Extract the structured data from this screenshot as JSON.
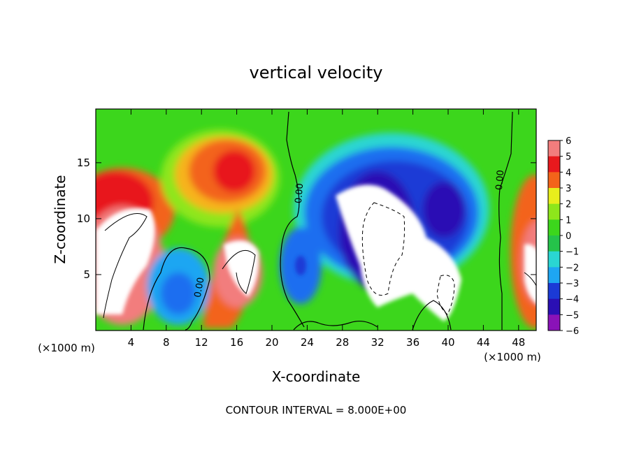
{
  "chart_data": {
    "type": "heatmap",
    "title": "vertical velocity",
    "xlabel": "X-coordinate",
    "ylabel": "Z-coordinate",
    "x_unit_left": "(×1000 m)",
    "x_unit_right": "(×1000 m)",
    "footer": "CONTOUR INTERVAL = 8.000E+00",
    "xlim": [
      0,
      50
    ],
    "ylim": [
      0,
      19.8
    ],
    "x_ticks": [
      4,
      8,
      12,
      16,
      20,
      24,
      28,
      32,
      36,
      40,
      44,
      48
    ],
    "y_ticks": [
      5,
      10,
      15
    ],
    "x_tick_labels": [
      "4",
      "8",
      "12",
      "16",
      "20",
      "24",
      "28",
      "32",
      "36",
      "40",
      "44",
      "48"
    ],
    "y_tick_labels": [
      "5",
      "10",
      "15"
    ],
    "colorbar": {
      "levels": [
        -6,
        -5,
        -4,
        -3,
        -2,
        -1,
        0,
        1,
        2,
        3,
        4,
        5,
        6
      ],
      "labels": [
        "6",
        "5",
        "4",
        "3",
        "2",
        "1",
        "0",
        "−1",
        "−2",
        "−3",
        "−4",
        "−5",
        "−6"
      ],
      "colors": [
        "#8a12b8",
        "#2a0fb4",
        "#1b3ad6",
        "#1d6ef0",
        "#1ea6f2",
        "#2ad6d2",
        "#25c34a",
        "#3cd61c",
        "#8ee61b",
        "#e8ee1c",
        "#f6b41a",
        "#f3641a",
        "#e8191d",
        "#f27d7d"
      ]
    },
    "contour_labels": [
      "0.00",
      "0.00",
      "0.00"
    ],
    "features": [
      {
        "kind": "updraft",
        "x": 2.5,
        "z": 8.0,
        "max": ">6"
      },
      {
        "kind": "updraft",
        "x": 15.0,
        "z": 13.5,
        "max": 5
      },
      {
        "kind": "updraft",
        "x": 17.0,
        "z": 6.5,
        "max": ">6"
      },
      {
        "kind": "downdraft",
        "x": 33.5,
        "z": 8.0,
        "min": "<-6"
      },
      {
        "kind": "downdraft",
        "x": 39.5,
        "z": 11.0,
        "min": -6
      },
      {
        "kind": "updraft",
        "x": 49.5,
        "z": 8.0,
        "max": ">6"
      }
    ]
  }
}
